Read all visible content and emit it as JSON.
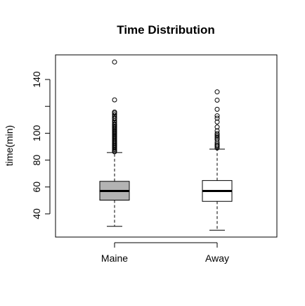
{
  "chart_data": {
    "type": "boxplot",
    "title": "Time Distribution",
    "xlabel": "",
    "ylabel": "time(min)",
    "categories": [
      "Maine",
      "Away"
    ],
    "y_ticks": [
      40,
      60,
      80,
      100,
      120,
      140
    ],
    "y_tick_labels": [
      "40",
      "60",
      "80",
      "100",
      "",
      "140"
    ],
    "ylim": [
      22,
      157
    ],
    "grid": false,
    "boxes": [
      {
        "category": "Maine",
        "fill": "#b3b3b3",
        "whisker_low": 30.7,
        "q1": 50.2,
        "median": 57.0,
        "q3": 64.2,
        "whisker_high": 85.6,
        "outliers": [
          86.2,
          87.0,
          87.8,
          88.6,
          89.4,
          90.2,
          91.0,
          91.8,
          92.6,
          93.4,
          94.2,
          95.0,
          95.8,
          96.6,
          97.4,
          98.2,
          99.0,
          99.8,
          100.6,
          101.4,
          102.2,
          103.0,
          103.8,
          104.6,
          105.4,
          106.2,
          107.0,
          108.2,
          109.4,
          110.6,
          111.4,
          112.6,
          113.8,
          115.0,
          115.8,
          124.8,
          153.0
        ]
      },
      {
        "category": "Away",
        "fill": "#ffffff",
        "whisker_low": 27.8,
        "q1": 49.3,
        "median": 57.0,
        "q3": 64.8,
        "whisker_high": 88.2,
        "outliers": [
          89.0,
          90.2,
          91.0,
          92.0,
          93.4,
          95.2,
          96.4,
          97.6,
          98.6,
          99.8,
          101.8,
          104.6,
          108.4,
          111.2,
          113.0,
          117.8,
          124.6,
          130.8
        ]
      }
    ]
  }
}
